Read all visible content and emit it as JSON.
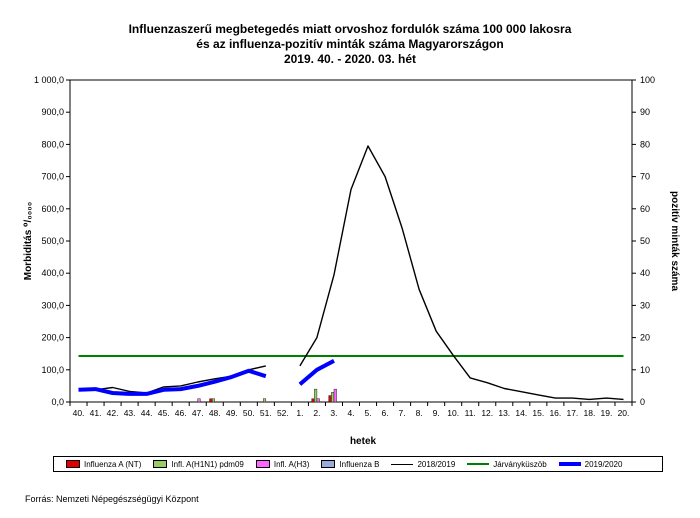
{
  "title": {
    "line1": "Influenzaszerű megbetegedés miatt orvoshoz fordulók száma 100 000 lakosra",
    "line2": "és az influenza-pozitív minták száma Magyarországon",
    "line3": "2019. 40. - 2020. 03. hét"
  },
  "source": "Forrás: Nemzeti Népegészségügyi Központ",
  "chart_data": {
    "type": "line",
    "xlabel": "hetek",
    "ylabel_left": "Morbiditás ⁰/₀₀₀₀",
    "ylabel_right": "pozitív minták száma",
    "ylim_left": [
      0,
      1000
    ],
    "ylim_right": [
      0,
      100
    ],
    "categories": [
      "40.",
      "41.",
      "42.",
      "43.",
      "44.",
      "45.",
      "46.",
      "47.",
      "48.",
      "49.",
      "50.",
      "51.",
      "52.",
      "1.",
      "2.",
      "3.",
      "4.",
      "5.",
      "6.",
      "7.",
      "8.",
      "9.",
      "10.",
      "11.",
      "12.",
      "13.",
      "14.",
      "15.",
      "16.",
      "17.",
      "18.",
      "19.",
      "20."
    ],
    "yticks_left": [
      "0,0",
      "100,0",
      "200,0",
      "300,0",
      "400,0",
      "500,0",
      "600,0",
      "700,0",
      "800,0",
      "900,0",
      "1 000,0"
    ],
    "yticks_right": [
      "0",
      "10",
      "20",
      "30",
      "40",
      "50",
      "60",
      "70",
      "80",
      "90",
      "100"
    ],
    "threshold": {
      "name": "Járványküszöb",
      "value": 143,
      "color": "#008000"
    },
    "lines": [
      {
        "name": "2018/2019",
        "color": "#000000",
        "width": 1.4,
        "segments": [
          {
            "start": 0,
            "values": [
              37,
              38,
              45,
              33,
              28,
              47,
              50,
              62,
              72,
              80,
              100,
              112
            ]
          },
          {
            "start": 13,
            "values": [
              112,
              200,
              395,
              660,
              795,
              700,
              540,
              350,
              220,
              145,
              75,
              60,
              42,
              32,
              22,
              12,
              12,
              8,
              12,
              8
            ]
          }
        ]
      },
      {
        "name": "2019/2020",
        "color": "#0000ff",
        "width": 4,
        "segments": [
          {
            "start": 0,
            "values": [
              38,
              40,
              28,
              25,
              25,
              38,
              40,
              50,
              63,
              78,
              97,
              80
            ]
          },
          {
            "start": 13,
            "values": [
              55,
              100,
              128
            ]
          }
        ]
      }
    ],
    "bars": [
      {
        "name": "Influenza A (NT)",
        "color": "#e00000",
        "values": {
          "8": 1,
          "14": 1,
          "15": 2
        }
      },
      {
        "name": "Infl. A(H1N1) pdm09",
        "color": "#99cc66",
        "values": {
          "8": 1,
          "11": 1,
          "14": 4,
          "15": 3
        }
      },
      {
        "name": "Infl. A(H3)",
        "color": "#ff66ff",
        "values": {
          "7": 1,
          "14": 1,
          "15": 4
        }
      },
      {
        "name": "Influenza B",
        "color": "#99aadd",
        "values": {}
      }
    ],
    "legend_order": [
      "Influenza A (NT)",
      "Infl. A(H1N1) pdm09",
      "Infl. A(H3)",
      "Influenza B",
      "2018/2019",
      "Járványküszöb",
      "2019/2020"
    ]
  }
}
